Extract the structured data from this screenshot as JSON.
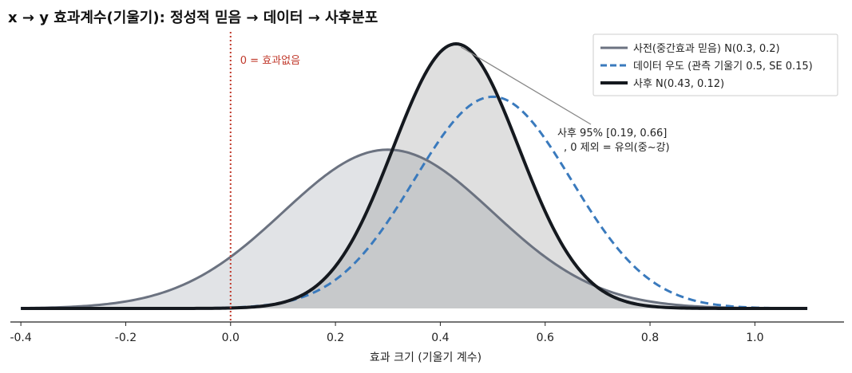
{
  "chart_data": {
    "type": "line",
    "title": "x → y 효과계수(기울기): 정성적 믿음 → 데이터 → 사후분포",
    "xlabel": "효과 크기 (기울기 계수)",
    "ylabel": "",
    "xlim": [
      -0.42,
      1.17
    ],
    "x_ticks": [
      -0.4,
      -0.2,
      0.0,
      0.2,
      0.4,
      0.6,
      0.8,
      1.0
    ],
    "x_tick_labels": [
      "-0.4",
      "-0.2",
      "0.0",
      "0.2",
      "0.4",
      "0.6",
      "0.8",
      "1.0"
    ],
    "x_range": [
      -0.4,
      1.1
    ],
    "grid": false,
    "legend_position": "top-right",
    "series": [
      {
        "name": "사전(중간효과 믿음) N(0.3, 0.2)",
        "distribution": "normal",
        "mean": 0.3,
        "sd": 0.2,
        "style": "solid",
        "filled": true,
        "color": "#6b7280"
      },
      {
        "name": "데이터 우도 (관측 기울기 0.5, SE 0.15)",
        "distribution": "normal",
        "mean": 0.5,
        "sd": 0.15,
        "style": "dashed",
        "filled": false,
        "color": "#3a7abd"
      },
      {
        "name": "사후 N(0.43, 0.12)",
        "distribution": "normal",
        "mean": 0.43,
        "sd": 0.12,
        "style": "solid",
        "filled": true,
        "color": "#15191f"
      }
    ],
    "reference_line": {
      "x": 0.0,
      "label": "0 = 효과없음",
      "color": "#c0392b",
      "style": "dotted"
    },
    "annotation": {
      "lines": [
        "사후 95% [0.19, 0.66]",
        ", 0 제외 = 유의(중~강)"
      ],
      "points_to_x": 0.43
    }
  }
}
